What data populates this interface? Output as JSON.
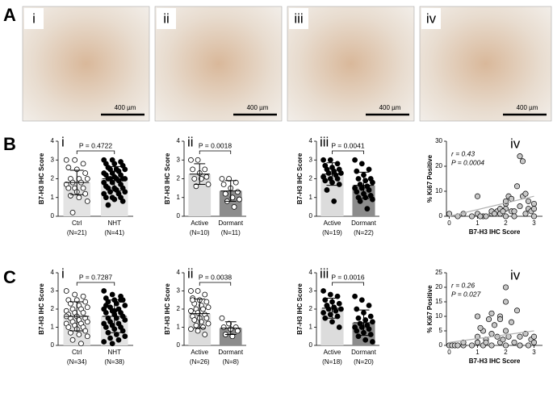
{
  "figure": {
    "panel_labels": [
      "A",
      "B",
      "C"
    ],
    "images": [
      {
        "label": "i",
        "scale_bar": "400 µm"
      },
      {
        "label": "ii",
        "scale_bar": "400 µm"
      },
      {
        "label": "iii",
        "scale_bar": "400 µm"
      },
      {
        "label": "iv",
        "scale_bar": "400 µm"
      }
    ]
  },
  "chart_data": [
    {
      "type": "dotbar",
      "panel_label": "i",
      "ylabel": "B7-H3 IHC Score",
      "ylim": [
        0,
        4
      ],
      "yticks": [
        0,
        1,
        2,
        3,
        4
      ],
      "annotation": "P = 0.4722",
      "categories": [
        "Ctrl",
        "NHT"
      ],
      "category_notes": [
        "(N=21)",
        "(N=41)"
      ],
      "groups": [
        {
          "bar_color": "#e3e3e3",
          "point_color": "#ffffff",
          "mean": 1.8,
          "sd": 0.65,
          "points": [
            3,
            3,
            2.8,
            2.6,
            2.5,
            2.3,
            2,
            2,
            2,
            1.8,
            1.8,
            1.7,
            1.5,
            1.5,
            1.5,
            1.3,
            1.2,
            1.1,
            1,
            0.8,
            0.2
          ]
        },
        {
          "bar_color": "#e3e3e3",
          "point_color": "#000000",
          "mean": 2.0,
          "sd": 0.65,
          "points": [
            3,
            3,
            2.9,
            2.8,
            2.8,
            2.7,
            2.6,
            2.5,
            2.5,
            2.5,
            2.4,
            2.3,
            2.3,
            2.2,
            2.2,
            2.1,
            2,
            2,
            2,
            2,
            2,
            1.9,
            1.8,
            1.8,
            1.7,
            1.6,
            1.5,
            1.5,
            1.5,
            1.4,
            1.3,
            1.3,
            1.2,
            1.2,
            1,
            1,
            1,
            0.9,
            0.8,
            0.6,
            2.5
          ]
        }
      ]
    },
    {
      "type": "dotbar",
      "panel_label": "ii",
      "ylabel": "B7-H3 IHC Score",
      "ylim": [
        0,
        4
      ],
      "yticks": [
        0,
        1,
        2,
        3,
        4
      ],
      "annotation": "P = 0.0018",
      "categories": [
        "Active",
        "Dormant"
      ],
      "category_notes": [
        "(N=10)",
        "(N=11)"
      ],
      "groups": [
        {
          "bar_color": "#dcdcdc",
          "point_color": "#ffffff",
          "mean": 2.25,
          "sd": 0.55,
          "points": [
            3,
            3,
            2.5,
            2.5,
            2.3,
            2.1,
            2,
            2,
            1.7,
            1.6
          ]
        },
        {
          "bar_color": "#8c8c8c",
          "point_color": "#ffffff",
          "mean": 1.35,
          "sd": 0.55,
          "points": [
            2,
            2,
            1.8,
            1.7,
            1.5,
            1.3,
            1.2,
            1,
            0.9,
            0.8,
            0.5
          ]
        }
      ]
    },
    {
      "type": "dotbar",
      "panel_label": "iii",
      "ylabel": "B7-H3 IHC Score",
      "ylim": [
        0,
        4
      ],
      "yticks": [
        0,
        1,
        2,
        3,
        4
      ],
      "annotation": "P = 0.0041",
      "categories": [
        "Active",
        "Dormant"
      ],
      "category_notes": [
        "(N=19)",
        "(N=22)"
      ],
      "groups": [
        {
          "bar_color": "#dcdcdc",
          "point_color": "#000000",
          "mean": 2.25,
          "sd": 0.6,
          "points": [
            3,
            3,
            2.8,
            2.7,
            2.6,
            2.5,
            2.5,
            2.4,
            2.3,
            2.3,
            2.2,
            2.1,
            2,
            2,
            1.9,
            1.8,
            1.7,
            1.4,
            0.8
          ]
        },
        {
          "bar_color": "#8c8c8c",
          "point_color": "#000000",
          "mean": 1.65,
          "sd": 0.7,
          "points": [
            3,
            2.8,
            2.5,
            2.4,
            2.2,
            2,
            2,
            1.9,
            1.8,
            1.7,
            1.6,
            1.5,
            1.5,
            1.4,
            1.3,
            1.2,
            1.1,
            1,
            1,
            0.9,
            0.8,
            0.4
          ]
        }
      ]
    },
    {
      "type": "scatter",
      "panel_label": "iv",
      "xlabel": "B7-H3 IHC Score",
      "ylabel": "% Ki67 Positive",
      "annotations": [
        "r = 0.43",
        "P = 0.0004"
      ],
      "xlim": [
        -0.1,
        3.3
      ],
      "xticks": [
        0,
        1,
        2,
        3
      ],
      "ylim": [
        0,
        30
      ],
      "yticks": [
        0,
        10,
        20,
        30
      ],
      "point_color": "#c8c8c8",
      "x": [
        0,
        0.3,
        0.5,
        0.8,
        1,
        1,
        1.2,
        1.3,
        1.5,
        1.5,
        1.7,
        1.8,
        1.8,
        2,
        2,
        2,
        2,
        2.1,
        2.2,
        2.2,
        2.3,
        2.3,
        2.5,
        2.5,
        2.6,
        2.7,
        2.8,
        2.8,
        2.9,
        3,
        3,
        3,
        1.1,
        1.6,
        2.4,
        2.7,
        1.9,
        2.6
      ],
      "y": [
        1,
        0,
        1,
        0,
        1,
        8,
        0,
        0,
        1,
        2,
        2,
        3,
        1,
        5,
        6,
        0,
        3,
        8,
        7,
        2,
        2,
        0,
        4,
        24,
        8,
        1,
        6,
        3,
        2,
        5,
        3,
        0,
        0,
        1,
        12,
        9,
        2,
        22
      ],
      "trend": {
        "x": [
          0,
          3
        ],
        "y": [
          0,
          8
        ],
        "color": "#b0b0b0"
      }
    },
    {
      "type": "dotbar",
      "panel_label": "i",
      "ylabel": "B7-H3 IHC Score",
      "ylim": [
        0,
        4
      ],
      "yticks": [
        0,
        1,
        2,
        3,
        4
      ],
      "annotation": "P = 0.7287",
      "categories": [
        "Ctrl",
        "NHT"
      ],
      "category_notes": [
        "(N=34)",
        "(N=38)"
      ],
      "groups": [
        {
          "bar_color": "#e3e3e3",
          "point_color": "#ffffff",
          "mean": 1.6,
          "sd": 0.8,
          "points": [
            3,
            2.8,
            2.7,
            2.5,
            2.5,
            2.4,
            2.3,
            2.2,
            2.1,
            2,
            2,
            1.9,
            1.8,
            1.8,
            1.7,
            1.6,
            1.5,
            1.5,
            1.4,
            1.3,
            1.3,
            1.2,
            1.2,
            1.1,
            1,
            1,
            0.9,
            0.8,
            0.7,
            0.6,
            0.5,
            0.3,
            0.1,
            1.6
          ]
        },
        {
          "bar_color": "#e3e3e3",
          "point_color": "#000000",
          "mean": 1.6,
          "sd": 0.9,
          "points": [
            3,
            2.8,
            2.7,
            2.6,
            2.5,
            2.5,
            2.4,
            2.3,
            2.2,
            2.1,
            2,
            2,
            1.9,
            1.8,
            1.8,
            1.7,
            1.6,
            1.5,
            1.5,
            1.4,
            1.3,
            1.2,
            1.2,
            1.1,
            1,
            1,
            0.9,
            0.8,
            0.7,
            0.6,
            0.5,
            0.4,
            0.3,
            0.2,
            0.1,
            2.5,
            2.2,
            1.9
          ]
        }
      ]
    },
    {
      "type": "dotbar",
      "panel_label": "ii",
      "ylabel": "B7-H3 IHC Score",
      "ylim": [
        0,
        4
      ],
      "yticks": [
        0,
        1,
        2,
        3,
        4
      ],
      "annotation": "P = 0.0038",
      "categories": [
        "Active",
        "Dormant"
      ],
      "category_notes": [
        "(N=26)",
        "(N=8)"
      ],
      "groups": [
        {
          "bar_color": "#dcdcdc",
          "point_color": "#ffffff",
          "mean": 1.75,
          "sd": 0.8,
          "points": [
            3,
            3,
            2.8,
            2.6,
            2.5,
            2.4,
            2.3,
            2.2,
            2.1,
            2,
            2,
            1.9,
            1.8,
            1.7,
            1.6,
            1.5,
            1.5,
            1.4,
            1.3,
            1.2,
            1.1,
            1,
            0.9,
            0.8,
            0.6,
            2.5
          ]
        },
        {
          "bar_color": "#8c8c8c",
          "point_color": "#ffffff",
          "mean": 0.95,
          "sd": 0.35,
          "points": [
            1.5,
            1.2,
            1,
            1,
            0.9,
            0.8,
            0.6,
            0.5
          ]
        }
      ]
    },
    {
      "type": "dotbar",
      "panel_label": "iii",
      "ylabel": "B7-H3 IHC Score",
      "ylim": [
        0,
        4
      ],
      "yticks": [
        0,
        1,
        2,
        3,
        4
      ],
      "annotation": "P = 0.0016",
      "categories": [
        "Active",
        "Dormant"
      ],
      "category_notes": [
        "(N=18)",
        "(N=20)"
      ],
      "groups": [
        {
          "bar_color": "#dcdcdc",
          "point_color": "#000000",
          "mean": 2.05,
          "sd": 0.55,
          "points": [
            3,
            2.8,
            2.7,
            2.5,
            2.4,
            2.3,
            2.2,
            2.1,
            2,
            2,
            1.9,
            1.8,
            1.7,
            1.6,
            1.5,
            1.3,
            1,
            2.2
          ]
        },
        {
          "bar_color": "#8c8c8c",
          "point_color": "#000000",
          "mean": 1.25,
          "sd": 0.7,
          "points": [
            2.7,
            2.5,
            2.2,
            2,
            1.8,
            1.6,
            1.5,
            1.4,
            1.3,
            1.2,
            1.1,
            1,
            1,
            0.9,
            0.8,
            0.7,
            0.6,
            0.5,
            0.3,
            0.2
          ]
        }
      ]
    },
    {
      "type": "scatter",
      "panel_label": "iv",
      "xlabel": "B7-H3 IHC Score",
      "ylabel": "% Ki67 Positive",
      "annotations": [
        "r = 0.26",
        "P = 0.027"
      ],
      "xlim": [
        -0.1,
        3.3
      ],
      "xticks": [
        0,
        1,
        2,
        3
      ],
      "ylim": [
        0,
        25
      ],
      "yticks": [
        0,
        5,
        10,
        15,
        20,
        25
      ],
      "point_color": "#c8c8c8",
      "x": [
        0,
        0.1,
        0.2,
        0.3,
        0.5,
        0.5,
        0.8,
        1,
        1,
        1,
        1.2,
        1.2,
        1.3,
        1.4,
        1.5,
        1.5,
        1.6,
        1.7,
        1.8,
        1.8,
        1.9,
        2,
        2,
        2,
        2.1,
        2.2,
        2.3,
        2.4,
        2.5,
        2.5,
        2.7,
        2.8,
        2.9,
        3,
        3,
        1,
        1.5,
        2,
        2.5,
        1.1,
        1.3,
        1.8
      ],
      "y": [
        0,
        0,
        0,
        0,
        0,
        1,
        0,
        1,
        3,
        10,
        0,
        5,
        2,
        9,
        4,
        0,
        7,
        3,
        10,
        1,
        2,
        0,
        20,
        5,
        3,
        8,
        1,
        12,
        3,
        0,
        4,
        0,
        2,
        3,
        1,
        1,
        11,
        15,
        0,
        6,
        1,
        9
      ],
      "trend": {
        "x": [
          0,
          3
        ],
        "y": [
          1,
          5
        ],
        "color": "#b0b0b0"
      }
    }
  ]
}
